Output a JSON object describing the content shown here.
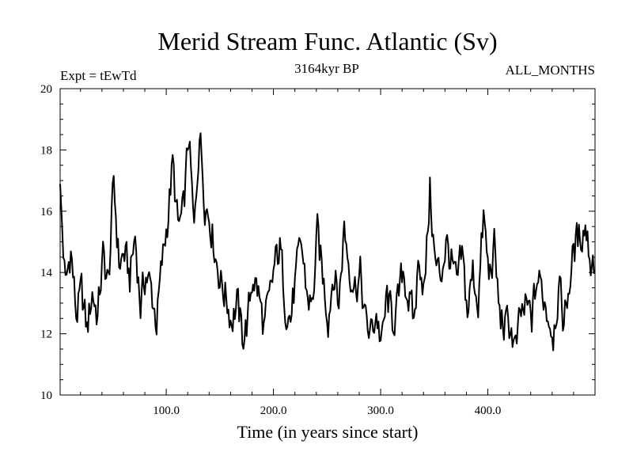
{
  "chart_data": {
    "type": "line",
    "title": "Merid Stream Func. Atlantic (Sv)",
    "subtitle_left": "Expt = tEwTd",
    "subtitle_center": "3164kyr BP",
    "subtitle_right": "ALL_MONTHS",
    "xlabel": "Time (in years since start)",
    "ylabel": "",
    "xlim": [
      1,
      500
    ],
    "ylim": [
      10,
      20
    ],
    "x_ticks": [
      100,
      200,
      300,
      400
    ],
    "x_tick_labels": [
      "100.0",
      "200.0",
      "300.0",
      "400.0"
    ],
    "y_ticks": [
      10,
      12,
      14,
      16,
      18,
      20
    ],
    "y_tick_labels": [
      "10",
      "12",
      "14",
      "16",
      "18",
      "20"
    ],
    "series": [
      {
        "name": "Merid Stream Func. Atlantic",
        "color": "#000000",
        "x_step": 5,
        "x_start": 1,
        "values": [
          16.6,
          13.5,
          14.8,
          12.6,
          13.3,
          12.1,
          13.4,
          12.6,
          14.5,
          13.6,
          16.9,
          14.3,
          14.6,
          13.8,
          15.2,
          12.9,
          14.0,
          13.4,
          12.4,
          14.2,
          15.7,
          17.5,
          15.4,
          15.9,
          18.5,
          15.2,
          18.7,
          16.4,
          15.8,
          14.6,
          13.7,
          13.2,
          12.5,
          13.0,
          11.9,
          12.4,
          14.0,
          13.3,
          12.2,
          12.9,
          14.2,
          14.8,
          13.1,
          12.5,
          13.8,
          14.9,
          13.4,
          12.8,
          15.2,
          13.9,
          12.6,
          14.1,
          13.0,
          15.5,
          14.2,
          13.6,
          13.9,
          12.3,
          12.0,
          12.7,
          11.6,
          13.2,
          12.4,
          12.9,
          14.1,
          13.2,
          12.3,
          14.6,
          13.4,
          16.7,
          14.2,
          13.9,
          15.0,
          14.3,
          13.5,
          14.5,
          12.7,
          14.0,
          13.1,
          15.8,
          13.8,
          14.8,
          12.6,
          12.2,
          12.3,
          11.4,
          12.6,
          12.8,
          12.5,
          13.8,
          13.4,
          12.7,
          12.1,
          13.5,
          12.4,
          13.7,
          14.8,
          15.2,
          15.6,
          14.4
        ]
      }
    ]
  }
}
